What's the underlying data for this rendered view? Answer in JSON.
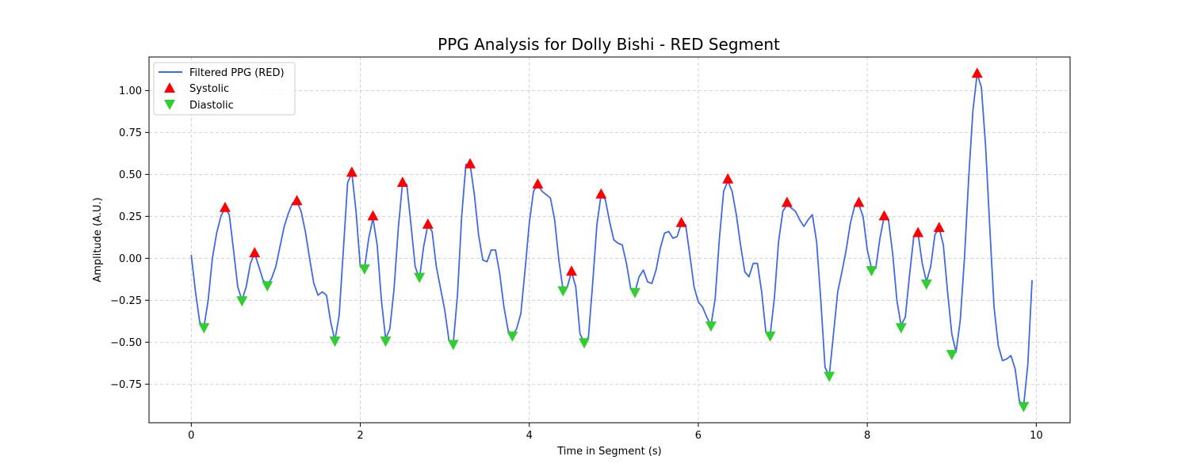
{
  "chart_data": {
    "type": "line",
    "title": "PPG Analysis for Dolly Bishi - RED Segment",
    "xlabel": "Time in Segment (s)",
    "ylabel": "Amplitude (A.U.)",
    "xlim": [
      -0.5,
      10.4
    ],
    "ylim": [
      -0.98,
      1.2
    ],
    "grid": true,
    "legend_position": "upper-left",
    "x_ticks": [
      0,
      2,
      4,
      6,
      8,
      10
    ],
    "y_ticks": [
      -0.75,
      -0.5,
      -0.25,
      0.0,
      0.25,
      0.5,
      0.75,
      1.0
    ],
    "x_tick_labels": [
      "0",
      "2",
      "4",
      "6",
      "8",
      "10"
    ],
    "y_tick_labels": [
      "−0.75",
      "−0.50",
      "−0.25",
      "0.00",
      "0.25",
      "0.50",
      "0.75",
      "1.00"
    ],
    "colors": {
      "line": "#4169E1",
      "systolic": "#FF0000",
      "diastolic": "#32CD32"
    },
    "series": [
      {
        "name": "Filtered PPG (RED)",
        "kind": "line",
        "points": [
          [
            0.0,
            0.02
          ],
          [
            0.05,
            -0.2
          ],
          [
            0.1,
            -0.38
          ],
          [
            0.15,
            -0.41
          ],
          [
            0.2,
            -0.25
          ],
          [
            0.25,
            0.0
          ],
          [
            0.3,
            0.15
          ],
          [
            0.35,
            0.25
          ],
          [
            0.4,
            0.3
          ],
          [
            0.45,
            0.26
          ],
          [
            0.5,
            0.05
          ],
          [
            0.55,
            -0.17
          ],
          [
            0.6,
            -0.25
          ],
          [
            0.65,
            -0.17
          ],
          [
            0.7,
            -0.03
          ],
          [
            0.75,
            0.03
          ],
          [
            0.8,
            -0.05
          ],
          [
            0.85,
            -0.13
          ],
          [
            0.9,
            -0.16
          ],
          [
            0.95,
            -0.12
          ],
          [
            1.0,
            -0.05
          ],
          [
            1.05,
            0.07
          ],
          [
            1.1,
            0.19
          ],
          [
            1.15,
            0.27
          ],
          [
            1.2,
            0.33
          ],
          [
            1.25,
            0.34
          ],
          [
            1.3,
            0.28
          ],
          [
            1.35,
            0.16
          ],
          [
            1.4,
            0.0
          ],
          [
            1.45,
            -0.15
          ],
          [
            1.5,
            -0.22
          ],
          [
            1.55,
            -0.2
          ],
          [
            1.6,
            -0.22
          ],
          [
            1.65,
            -0.38
          ],
          [
            1.7,
            -0.49
          ],
          [
            1.75,
            -0.34
          ],
          [
            1.8,
            0.05
          ],
          [
            1.85,
            0.45
          ],
          [
            1.9,
            0.51
          ],
          [
            1.95,
            0.28
          ],
          [
            2.0,
            -0.05
          ],
          [
            2.05,
            -0.06
          ],
          [
            2.1,
            0.12
          ],
          [
            2.15,
            0.24
          ],
          [
            2.2,
            0.08
          ],
          [
            2.25,
            -0.25
          ],
          [
            2.3,
            -0.48
          ],
          [
            2.35,
            -0.42
          ],
          [
            2.4,
            -0.18
          ],
          [
            2.45,
            0.18
          ],
          [
            2.5,
            0.45
          ],
          [
            2.55,
            0.44
          ],
          [
            2.6,
            0.2
          ],
          [
            2.65,
            -0.05
          ],
          [
            2.7,
            -0.12
          ],
          [
            2.75,
            0.07
          ],
          [
            2.8,
            0.2
          ],
          [
            2.85,
            0.16
          ],
          [
            2.9,
            -0.05
          ],
          [
            2.95,
            -0.18
          ],
          [
            3.0,
            -0.31
          ],
          [
            3.05,
            -0.49
          ],
          [
            3.1,
            -0.51
          ],
          [
            3.15,
            -0.22
          ],
          [
            3.2,
            0.25
          ],
          [
            3.25,
            0.56
          ],
          [
            3.3,
            0.56
          ],
          [
            3.35,
            0.38
          ],
          [
            3.4,
            0.14
          ],
          [
            3.45,
            -0.01
          ],
          [
            3.5,
            -0.02
          ],
          [
            3.55,
            0.05
          ],
          [
            3.6,
            0.05
          ],
          [
            3.65,
            -0.09
          ],
          [
            3.7,
            -0.29
          ],
          [
            3.75,
            -0.43
          ],
          [
            3.8,
            -0.46
          ],
          [
            3.85,
            -0.42
          ],
          [
            3.9,
            -0.33
          ],
          [
            3.95,
            -0.07
          ],
          [
            4.0,
            0.21
          ],
          [
            4.05,
            0.4
          ],
          [
            4.1,
            0.44
          ],
          [
            4.15,
            0.4
          ],
          [
            4.2,
            0.38
          ],
          [
            4.25,
            0.36
          ],
          [
            4.3,
            0.23
          ],
          [
            4.35,
            -0.01
          ],
          [
            4.4,
            -0.19
          ],
          [
            4.45,
            -0.17
          ],
          [
            4.5,
            -0.08
          ],
          [
            4.55,
            -0.17
          ],
          [
            4.6,
            -0.45
          ],
          [
            4.65,
            -0.5
          ],
          [
            4.7,
            -0.47
          ],
          [
            4.75,
            -0.15
          ],
          [
            4.8,
            0.2
          ],
          [
            4.85,
            0.38
          ],
          [
            4.9,
            0.35
          ],
          [
            4.95,
            0.22
          ],
          [
            5.0,
            0.11
          ],
          [
            5.05,
            0.09
          ],
          [
            5.1,
            0.08
          ],
          [
            5.15,
            -0.03
          ],
          [
            5.2,
            -0.18
          ],
          [
            5.25,
            -0.2
          ],
          [
            5.3,
            -0.11
          ],
          [
            5.35,
            -0.07
          ],
          [
            5.4,
            -0.14
          ],
          [
            5.45,
            -0.15
          ],
          [
            5.5,
            -0.07
          ],
          [
            5.55,
            0.06
          ],
          [
            5.6,
            0.15
          ],
          [
            5.65,
            0.16
          ],
          [
            5.7,
            0.12
          ],
          [
            5.75,
            0.13
          ],
          [
            5.8,
            0.21
          ],
          [
            5.85,
            0.2
          ],
          [
            5.9,
            0.02
          ],
          [
            5.95,
            -0.17
          ],
          [
            6.0,
            -0.26
          ],
          [
            6.05,
            -0.29
          ],
          [
            6.1,
            -0.35
          ],
          [
            6.15,
            -0.4
          ],
          [
            6.2,
            -0.24
          ],
          [
            6.25,
            0.12
          ],
          [
            6.3,
            0.4
          ],
          [
            6.35,
            0.46
          ],
          [
            6.4,
            0.4
          ],
          [
            6.45,
            0.26
          ],
          [
            6.5,
            0.08
          ],
          [
            6.55,
            -0.08
          ],
          [
            6.6,
            -0.11
          ],
          [
            6.65,
            -0.03
          ],
          [
            6.7,
            -0.03
          ],
          [
            6.75,
            -0.2
          ],
          [
            6.8,
            -0.44
          ],
          [
            6.85,
            -0.46
          ],
          [
            6.9,
            -0.24
          ],
          [
            6.95,
            0.1
          ],
          [
            7.0,
            0.28
          ],
          [
            7.05,
            0.32
          ],
          [
            7.1,
            0.3
          ],
          [
            7.15,
            0.28
          ],
          [
            7.2,
            0.23
          ],
          [
            7.25,
            0.19
          ],
          [
            7.3,
            0.23
          ],
          [
            7.35,
            0.26
          ],
          [
            7.4,
            0.1
          ],
          [
            7.45,
            -0.25
          ],
          [
            7.5,
            -0.65
          ],
          [
            7.55,
            -0.7
          ],
          [
            7.6,
            -0.45
          ],
          [
            7.65,
            -0.2
          ],
          [
            7.7,
            -0.08
          ],
          [
            7.75,
            0.05
          ],
          [
            7.8,
            0.21
          ],
          [
            7.85,
            0.31
          ],
          [
            7.9,
            0.32
          ],
          [
            7.95,
            0.25
          ],
          [
            8.0,
            0.05
          ],
          [
            8.05,
            -0.06
          ],
          [
            8.1,
            -0.06
          ],
          [
            8.15,
            0.12
          ],
          [
            8.2,
            0.25
          ],
          [
            8.25,
            0.23
          ],
          [
            8.3,
            0.03
          ],
          [
            8.35,
            -0.25
          ],
          [
            8.4,
            -0.4
          ],
          [
            8.45,
            -0.35
          ],
          [
            8.5,
            -0.1
          ],
          [
            8.55,
            0.13
          ],
          [
            8.6,
            0.15
          ],
          [
            8.65,
            -0.03
          ],
          [
            8.7,
            -0.14
          ],
          [
            8.75,
            -0.05
          ],
          [
            8.8,
            0.14
          ],
          [
            8.85,
            0.18
          ],
          [
            8.9,
            0.08
          ],
          [
            8.95,
            -0.2
          ],
          [
            9.0,
            -0.45
          ],
          [
            9.05,
            -0.56
          ],
          [
            9.1,
            -0.37
          ],
          [
            9.15,
            0.0
          ],
          [
            9.2,
            0.48
          ],
          [
            9.25,
            0.88
          ],
          [
            9.3,
            1.1
          ],
          [
            9.35,
            1.02
          ],
          [
            9.4,
            0.67
          ],
          [
            9.45,
            0.18
          ],
          [
            9.5,
            -0.29
          ],
          [
            9.55,
            -0.52
          ],
          [
            9.6,
            -0.61
          ],
          [
            9.65,
            -0.6
          ],
          [
            9.7,
            -0.58
          ],
          [
            9.75,
            -0.66
          ],
          [
            9.8,
            -0.85
          ],
          [
            9.85,
            -0.88
          ],
          [
            9.9,
            -0.63
          ],
          [
            9.95,
            -0.13
          ]
        ]
      },
      {
        "name": "Systolic",
        "kind": "marker-up",
        "points": [
          [
            0.4,
            0.3
          ],
          [
            0.75,
            0.03
          ],
          [
            1.25,
            0.34
          ],
          [
            1.9,
            0.51
          ],
          [
            2.15,
            0.25
          ],
          [
            2.5,
            0.45
          ],
          [
            2.8,
            0.2
          ],
          [
            3.3,
            0.56
          ],
          [
            4.1,
            0.44
          ],
          [
            4.5,
            -0.08
          ],
          [
            4.85,
            0.38
          ],
          [
            5.8,
            0.21
          ],
          [
            6.35,
            0.47
          ],
          [
            7.05,
            0.33
          ],
          [
            7.9,
            0.33
          ],
          [
            8.2,
            0.25
          ],
          [
            8.6,
            0.15
          ],
          [
            8.85,
            0.18
          ],
          [
            9.3,
            1.1
          ]
        ]
      },
      {
        "name": "Diastolic",
        "kind": "marker-down",
        "points": [
          [
            0.15,
            -0.41
          ],
          [
            0.6,
            -0.25
          ],
          [
            0.9,
            -0.16
          ],
          [
            1.7,
            -0.49
          ],
          [
            2.05,
            -0.06
          ],
          [
            2.3,
            -0.49
          ],
          [
            2.7,
            -0.11
          ],
          [
            3.1,
            -0.51
          ],
          [
            3.8,
            -0.46
          ],
          [
            4.4,
            -0.19
          ],
          [
            4.65,
            -0.5
          ],
          [
            5.25,
            -0.2
          ],
          [
            6.15,
            -0.4
          ],
          [
            6.85,
            -0.46
          ],
          [
            7.55,
            -0.7
          ],
          [
            8.05,
            -0.07
          ],
          [
            8.4,
            -0.41
          ],
          [
            8.7,
            -0.15
          ],
          [
            9.0,
            -0.57
          ],
          [
            9.85,
            -0.88
          ]
        ]
      }
    ]
  }
}
